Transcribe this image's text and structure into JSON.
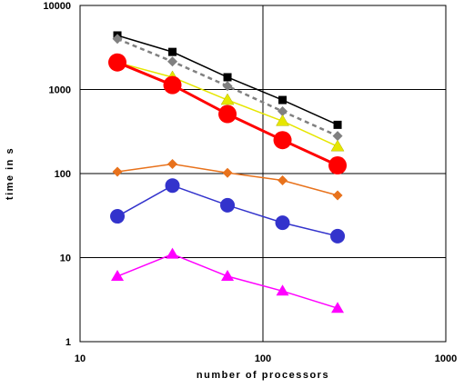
{
  "chart_data": {
    "type": "line",
    "xlabel": "number of processors",
    "ylabel": "time in s",
    "x_scale": "log",
    "y_scale": "log",
    "xlim": [
      10,
      1000
    ],
    "ylim": [
      1,
      10000
    ],
    "grid": "major",
    "x_tick_labels": [
      "10",
      "100",
      "1000"
    ],
    "y_tick_labels": [
      "1",
      "10",
      "100",
      "1000",
      "10000"
    ],
    "x": [
      16,
      32,
      64,
      128,
      256
    ],
    "series": [
      {
        "color": "#000000",
        "marker": "square",
        "line_style": "solid",
        "values": [
          4400,
          2800,
          1400,
          750,
          380
        ]
      },
      {
        "color": "#808080",
        "marker": "diamond",
        "line_style": "dashed",
        "values": [
          4000,
          2150,
          1100,
          550,
          280
        ]
      },
      {
        "color": "#e6e600",
        "marker": "triangle",
        "line_style": "solid",
        "values": [
          2100,
          1400,
          750,
          420,
          210
        ]
      },
      {
        "color": "#ff0000",
        "marker": "circle-large",
        "line_style": "solid",
        "values": [
          2100,
          1130,
          510,
          250,
          125
        ]
      },
      {
        "color": "#e8721c",
        "marker": "diamond",
        "line_style": "solid",
        "values": [
          105,
          130,
          102,
          83,
          55
        ]
      },
      {
        "color": "#3333cc",
        "marker": "circle",
        "line_style": "solid",
        "values": [
          31,
          72,
          42,
          26,
          18
        ]
      },
      {
        "color": "#ff00ff",
        "marker": "triangle",
        "line_style": "solid",
        "values": [
          6,
          11,
          6,
          4,
          2.5
        ]
      }
    ]
  }
}
